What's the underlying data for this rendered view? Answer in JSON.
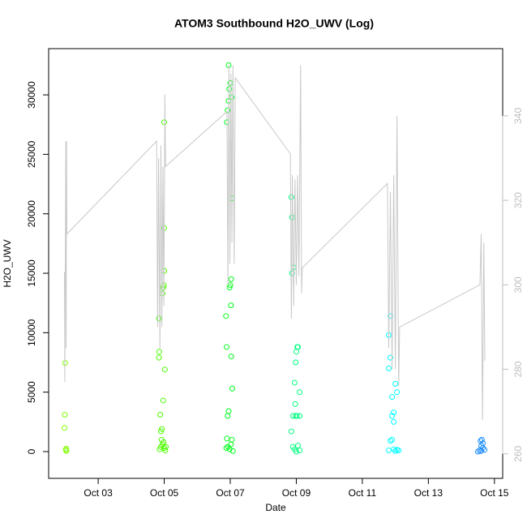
{
  "chart_data": {
    "type": "scatter",
    "title": "ATOM3 Southbound H2O_UWV (Log)",
    "x_label": "Date",
    "y_label": "H2O_UWV",
    "xlim": [
      1.5,
      15.25
    ],
    "ylim": [
      -2250,
      33890
    ],
    "y2lim": [
      254.2,
      355.9
    ],
    "xticks": [
      {
        "value": 3,
        "label": "Oct 03"
      },
      {
        "value": 5,
        "label": "Oct 05"
      },
      {
        "value": 7,
        "label": "Oct 07"
      },
      {
        "value": 9,
        "label": "Oct 09"
      },
      {
        "value": 11,
        "label": "Oct 11"
      },
      {
        "value": 13,
        "label": "Oct 13"
      },
      {
        "value": 15,
        "label": "Oct 15"
      }
    ],
    "yticks": [
      0,
      5000,
      10000,
      15000,
      20000,
      25000,
      30000
    ],
    "y2ticks": [
      260,
      280,
      300,
      320,
      340
    ],
    "y2_color": "#bebebe",
    "series": [
      {
        "color": "#80ff00",
        "x": [
          2.0,
          1.99,
          1.98,
          2.02,
          2.04,
          2.03
        ],
        "values": [
          7450,
          3100,
          2000,
          150,
          50,
          250
        ]
      },
      {
        "color": "#4cff00",
        "x": [
          4.84,
          4.85,
          4.84,
          4.88,
          4.9,
          4.92,
          4.95,
          4.97,
          4.99,
          5.0,
          5.0,
          5.0,
          4.97,
          5.02,
          4.86,
          4.9,
          4.95,
          5.0,
          5.03,
          5.05,
          4.93,
          4.98
        ],
        "values": [
          11200,
          8400,
          7900,
          3100,
          1700,
          1000,
          13300,
          13800,
          14000,
          15200,
          18800,
          27700,
          4300,
          6900,
          200,
          400,
          600,
          300,
          100,
          400,
          1900,
          800
        ]
      },
      {
        "color": "#00ff1a",
        "x": [
          6.87,
          6.89,
          6.9,
          6.92,
          6.95,
          6.97,
          7.0,
          7.04,
          7.03,
          6.98,
          7.0,
          7.02,
          7.05,
          7.03,
          7.06,
          6.95,
          6.92,
          6.95,
          6.9,
          6.93,
          6.98,
          7.05,
          7.02,
          7.08,
          6.88
        ],
        "values": [
          11400,
          8800,
          27700,
          28700,
          29500,
          30500,
          31000,
          29800,
          14500,
          13800,
          14000,
          12300,
          21300,
          8000,
          5300,
          3400,
          3000,
          32500,
          1100,
          400,
          200,
          1000,
          600,
          50,
          300
        ]
      },
      {
        "color": "#00ff80",
        "x": [
          8.85,
          8.87,
          8.87,
          8.92,
          9.0,
          9.03,
          9.05,
          8.98,
          8.95,
          9.1,
          8.97,
          8.9,
          8.98,
          9.02,
          9.1,
          8.85,
          8.9,
          8.95,
          9.05,
          9.1,
          9.0
        ],
        "values": [
          21400,
          19700,
          15000,
          15500,
          8400,
          8800,
          8800,
          7500,
          5800,
          5000,
          4000,
          3000,
          3000,
          3000,
          3000,
          1700,
          400,
          200,
          500,
          100,
          0
        ]
      },
      {
        "color": "#00ffff",
        "x": [
          11.85,
          11.8,
          11.85,
          11.8,
          11.9,
          12.0,
          12.05,
          11.95,
          11.9,
          11.95,
          11.85,
          11.9,
          11.95,
          11.8,
          12.0,
          12.1,
          12.05
        ],
        "values": [
          11400,
          9800,
          7900,
          7000,
          4600,
          5700,
          5000,
          3300,
          3000,
          2500,
          900,
          1000,
          200,
          100,
          50,
          100,
          150
        ]
      },
      {
        "color": "#1a8cff",
        "x": [
          14.58,
          14.62,
          14.65,
          14.6,
          14.55,
          14.6,
          14.7,
          14.65,
          14.5
        ],
        "values": [
          900,
          1000,
          700,
          500,
          100,
          50,
          150,
          300,
          0
        ]
      },
      {
        "axis": "y2",
        "color": "#c8c8c8",
        "x": [
          1.98,
          1.99,
          2.02,
          2.03,
          2.04,
          2.05,
          4.77,
          4.8,
          4.83,
          4.87,
          4.9,
          4.93,
          4.96,
          4.99,
          5.02,
          5.04,
          6.9,
          6.93,
          6.96,
          6.99,
          7.02,
          7.05,
          7.08,
          7.12,
          7.15,
          8.82,
          8.85,
          8.88,
          8.92,
          8.96,
          9.0,
          9.04,
          9.08,
          9.13,
          9.16,
          9.18,
          11.76,
          11.8,
          11.85,
          11.9,
          11.95,
          12.0,
          12.05,
          12.1,
          12.13,
          14.56,
          14.6,
          14.64,
          14.68,
          14.71
        ],
        "values": [
          303,
          277,
          334,
          285,
          334,
          312,
          334,
          290,
          330,
          285,
          333,
          290,
          328,
          295,
          345,
          328,
          341,
          300,
          352,
          305,
          350,
          310,
          352,
          305,
          349,
          331,
          292,
          326,
          295,
          325,
          300,
          326,
          302,
          352,
          298,
          304,
          324,
          285,
          322,
          280,
          326,
          280,
          340,
          276,
          290,
          300,
          312,
          268,
          310,
          282
        ]
      }
    ]
  }
}
